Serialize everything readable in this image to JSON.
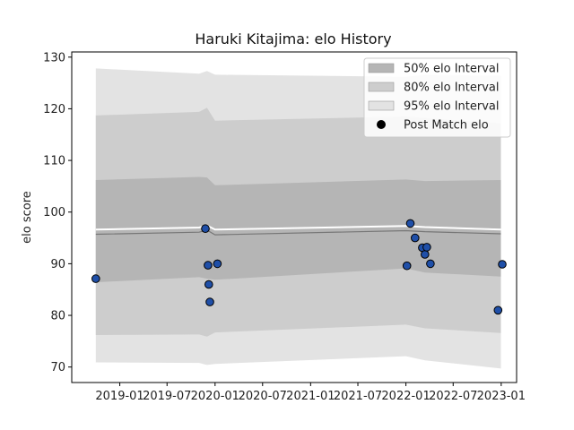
{
  "chart_data": {
    "type": "line",
    "title": "Haruki Kitajima: elo History",
    "ylabel": "elo score",
    "xlabel": "",
    "xlim": [
      "2018-07-01",
      "2023-03-01"
    ],
    "ylim": [
      67,
      131
    ],
    "y_ticks": [
      70,
      80,
      90,
      100,
      110,
      120,
      130
    ],
    "x_ticks": [
      "2019-01",
      "2019-07",
      "2020-01",
      "2020-07",
      "2021-01",
      "2021-07",
      "2022-01",
      "2022-07",
      "2023-01"
    ],
    "grid": false,
    "legend_position": "top-right",
    "legend": [
      {
        "label": "50% elo Interval",
        "kind": "band",
        "color": "#b5b5b5"
      },
      {
        "label": "80% elo Interval",
        "kind": "band",
        "color": "#cdcdcd"
      },
      {
        "label": "95% elo Interval",
        "kind": "band",
        "color": "#e3e3e3"
      },
      {
        "label": "Post Match elo",
        "kind": "marker",
        "color": "#000000"
      }
    ],
    "bands": {
      "x": [
        "2018-10-01",
        "2019-11-01",
        "2019-12-01",
        "2020-01-01",
        "2022-01-01",
        "2022-03-15",
        "2022-12-31"
      ],
      "p95_upper": [
        127.8,
        126.8,
        127.3,
        126.6,
        126.2,
        126.6,
        126.4
      ],
      "p80_upper": [
        118.7,
        119.4,
        120.2,
        117.7,
        118.5,
        118.2,
        117.2
      ],
      "p50_upper": [
        106.2,
        106.8,
        106.7,
        105.2,
        106.3,
        106.0,
        106.2
      ],
      "median": [
        95.7,
        96.1,
        96.5,
        95.6,
        96.4,
        96.2,
        95.8
      ],
      "p50_lower": [
        86.4,
        87.4,
        87.1,
        86.9,
        89.1,
        88.3,
        87.5
      ],
      "p80_lower": [
        76.2,
        76.3,
        75.9,
        76.7,
        78.2,
        77.5,
        76.6
      ],
      "p95_lower": [
        70.9,
        70.8,
        70.4,
        70.6,
        72.1,
        71.3,
        69.7
      ]
    },
    "trend": {
      "x": [
        "2018-10-01",
        "2019-11-01",
        "2019-12-01",
        "2020-01-01",
        "2022-01-01",
        "2022-03-15",
        "2022-12-31"
      ],
      "y": [
        96.6,
        97.0,
        97.4,
        96.6,
        97.3,
        97.1,
        96.6
      ]
    },
    "series": [
      {
        "name": "Post Match elo",
        "points": [
          {
            "x": "2018-10-01",
            "y": 87.1
          },
          {
            "x": "2019-11-25",
            "y": 96.8
          },
          {
            "x": "2019-12-05",
            "y": 89.7
          },
          {
            "x": "2019-12-08",
            "y": 86.0
          },
          {
            "x": "2019-12-12",
            "y": 82.6
          },
          {
            "x": "2020-01-10",
            "y": 90.0
          },
          {
            "x": "2022-01-05",
            "y": 89.6
          },
          {
            "x": "2022-01-18",
            "y": 97.8
          },
          {
            "x": "2022-02-05",
            "y": 95.0
          },
          {
            "x": "2022-03-05",
            "y": 93.1
          },
          {
            "x": "2022-03-15",
            "y": 91.8
          },
          {
            "x": "2022-03-22",
            "y": 93.2
          },
          {
            "x": "2022-04-05",
            "y": 90.0
          },
          {
            "x": "2022-12-20",
            "y": 81.0
          },
          {
            "x": "2023-01-05",
            "y": 89.9
          }
        ]
      }
    ]
  }
}
